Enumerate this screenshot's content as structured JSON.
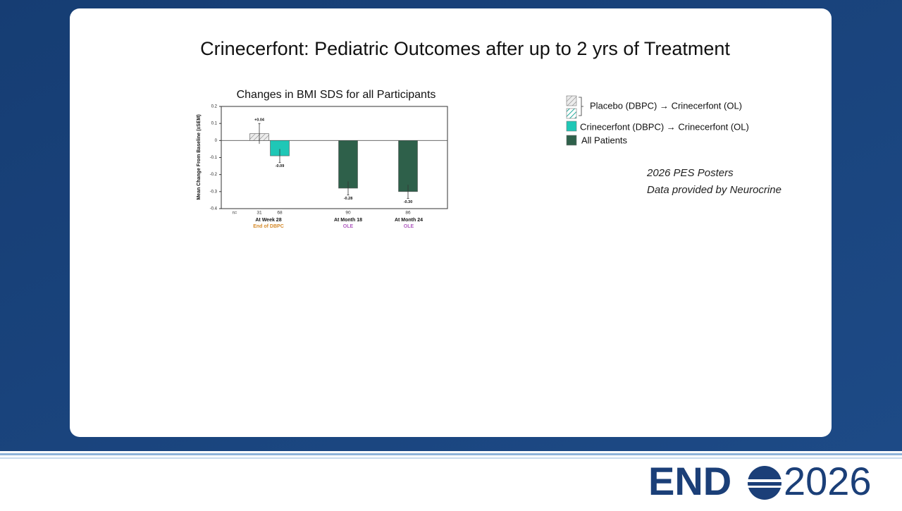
{
  "slide": {
    "title": "Crinecerfont: Pediatric Outcomes after up to 2 yrs of Treatment",
    "notes": [
      "2026 PES Posters",
      "Data provided by Neurocrine"
    ],
    "logo": {
      "left": "END",
      "right": "2026"
    }
  },
  "chart_data": {
    "type": "bar",
    "title": "Changes in BMI SDS for all Participants",
    "y_label": "Mean Change From Baseline (±SEM)",
    "categories": [
      "At Week 28",
      "At Month 18",
      "At Month 24"
    ],
    "sublabels": [
      "End of DBPC",
      "OLE",
      "OLE"
    ],
    "n_label": "n=",
    "series": [
      {
        "name": "Placebo (DBPC) → Crinecerfont (OL)",
        "color": "#d9d9d9",
        "pattern": "hatch",
        "values": [
          0.04,
          null,
          null
        ],
        "value_labels": [
          "+0.04",
          null,
          null
        ],
        "errors": [
          0.06,
          null,
          null
        ],
        "n": [
          31,
          null,
          null
        ]
      },
      {
        "name": "Crinecerfont (DBPC) → Crinecerfont (OL)",
        "color": "#1fc7b6",
        "values": [
          -0.09,
          null,
          null
        ],
        "value_labels": [
          "-0.09",
          null,
          null
        ],
        "errors": [
          0.04,
          null,
          null
        ],
        "n": [
          68,
          null,
          null
        ]
      },
      {
        "name": "All Patients",
        "color": "#2e604a",
        "values": [
          null,
          -0.28,
          -0.3
        ],
        "value_labels": [
          null,
          "-0.28",
          "-0.30"
        ],
        "errors": [
          null,
          0.04,
          0.04
        ],
        "n": [
          null,
          90,
          86
        ]
      }
    ],
    "ylim": [
      -0.4,
      0.2
    ],
    "yticks": [
      0.2,
      0.1,
      0,
      -0.1,
      -0.2,
      -0.3,
      -0.4
    ],
    "zero_line": true
  }
}
